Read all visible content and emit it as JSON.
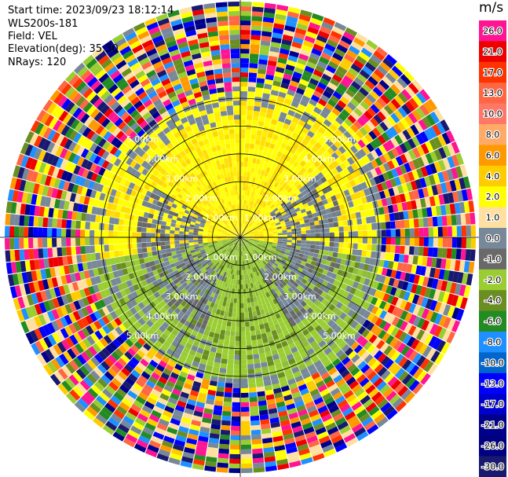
{
  "header": {
    "start_time": "Start time: 2023/09/23 18:12:14",
    "site": "WLS200s-181",
    "field": "Field: VEL",
    "elevation": "Elevation(deg): 35.30",
    "nrays": "NRays: 120"
  },
  "colorbar": {
    "unit": "m/s",
    "levels": [
      "26.0",
      "21.0",
      "17.0",
      "13.0",
      "10.0",
      "8.0",
      "6.0",
      "4.0",
      "2.0",
      "1.0",
      "0.0",
      "-1.0",
      "-2.0",
      "-4.0",
      "-6.0",
      "-8.0",
      "-10.0",
      "-13.0",
      "-17.0",
      "-21.0",
      "-26.0",
      "-30.0"
    ],
    "colors": [
      "#ff1493",
      "#ee0000",
      "#ff3300",
      "#ff6644",
      "#ff7766",
      "#ffaa66",
      "#ff9900",
      "#ffcc00",
      "#ffff00",
      "#ffe0a0",
      "#778899",
      "#696969",
      "#9acd32",
      "#6b8e23",
      "#228b22",
      "#1e90ff",
      "#0066cc",
      "#0000ff",
      "#0000cd",
      "#00008b",
      "#000080",
      "#191970"
    ]
  },
  "chart_data": {
    "type": "ppi",
    "field": "VEL",
    "unit": "m/s",
    "n_rays": 120,
    "elevation_deg": 35.3,
    "range_rings": [
      {
        "label": "1.00km",
        "range_km": 1.0
      },
      {
        "label": "2.00km",
        "range_km": 2.0
      },
      {
        "label": "3.00km",
        "range_km": 3.0
      },
      {
        "label": "4.00km",
        "range_km": 4.0
      },
      {
        "label": "5.00km",
        "range_km": 5.0
      }
    ],
    "max_range_km": 5.0,
    "velocity_regions": [
      {
        "range_km": [
          0.0,
          2.2
        ],
        "sector": "north",
        "value_mps": 2.0
      },
      {
        "range_km": [
          0.0,
          2.6
        ],
        "sector": "south",
        "value_mps": -3.0
      },
      {
        "range_km": [
          0.5,
          1.3
        ],
        "sector": "east-west",
        "value_mps": 0.0
      },
      {
        "range_km": [
          3.0,
          5.0
        ],
        "sector": "all",
        "value_mps": "noise"
      }
    ]
  }
}
